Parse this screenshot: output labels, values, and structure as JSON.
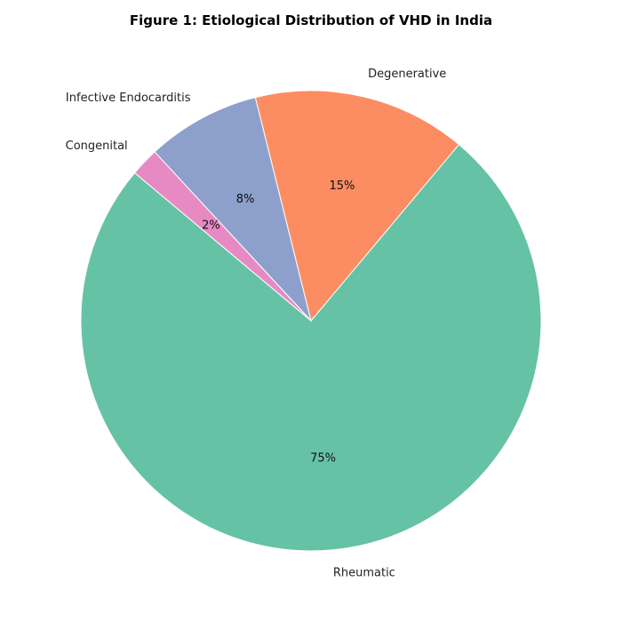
{
  "chart_data": {
    "type": "pie",
    "title": "Figure 1: Etiological Distribution of VHD in India",
    "start_angle_deg": 140,
    "direction": "counterclockwise",
    "slices": [
      {
        "label": "Rheumatic",
        "value": 75,
        "pct_label": "75%",
        "color": "#66c2a5"
      },
      {
        "label": "Degenerative",
        "value": 15,
        "pct_label": "15%",
        "color": "#fc8d62"
      },
      {
        "label": "Infective Endocarditis",
        "value": 8,
        "pct_label": "8%",
        "color": "#8da0cb"
      },
      {
        "label": "Congenital",
        "value": 2,
        "pct_label": "2%",
        "color": "#e78ac3"
      }
    ]
  }
}
